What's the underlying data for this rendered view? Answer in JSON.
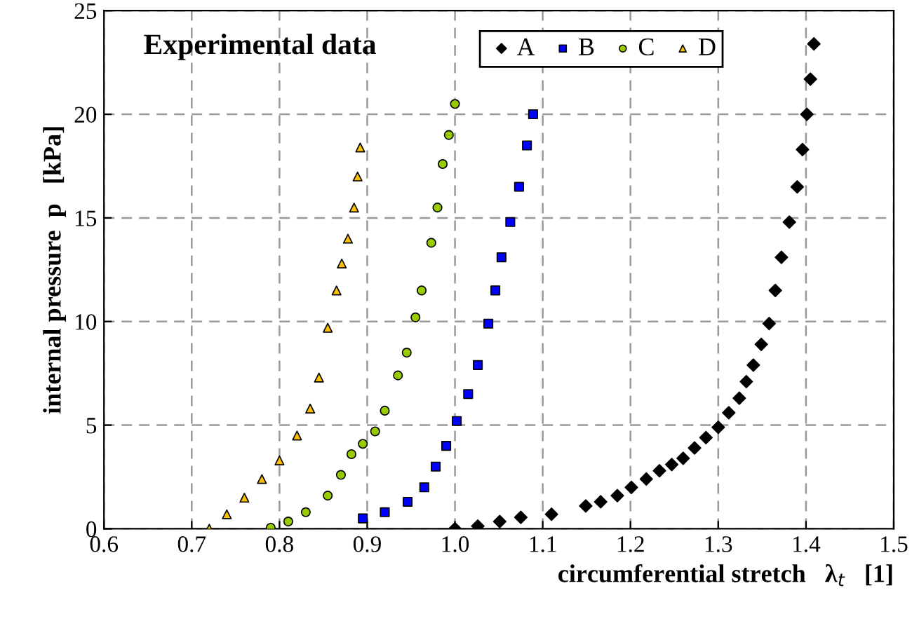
{
  "chart_data": {
    "type": "scatter",
    "xlabel": "circumferential stretch   λ$_{t}$   [1]",
    "ylabel": "internal pressure  p   [kPa]",
    "annotations": [
      "Experimental data"
    ],
    "xlim": [
      0.6,
      1.5
    ],
    "xticks": [
      0.6,
      0.7,
      0.8,
      0.9,
      {
        "value": 1.0,
        "label": "1.0"
      },
      1.1,
      1.2,
      1.3,
      1.4,
      1.5
    ],
    "ylim": [
      0,
      25
    ],
    "yticks": [
      0,
      5,
      10,
      15,
      20,
      25
    ],
    "grid": true,
    "legend": "top right",
    "series": [
      {
        "name": "A",
        "color": "#000000",
        "marker": "diamond",
        "x": [
          1.0,
          1.026,
          1.051,
          1.075,
          1.11,
          1.149,
          1.166,
          1.185,
          1.201,
          1.218,
          1.233,
          1.247,
          1.26,
          1.273,
          1.286,
          1.3,
          1.312,
          1.324,
          1.332,
          1.34,
          1.349,
          1.358,
          1.365,
          1.372,
          1.381,
          1.39,
          1.396,
          1.401,
          1.405,
          1.409
        ],
        "values": [
          0,
          0.13,
          0.35,
          0.55,
          0.7,
          1.1,
          1.3,
          1.6,
          2.0,
          2.4,
          2.8,
          3.1,
          3.4,
          3.9,
          4.4,
          4.9,
          5.6,
          6.3,
          7.1,
          7.9,
          8.9,
          9.9,
          11.5,
          13.1,
          14.8,
          16.5,
          18.3,
          20,
          21.7,
          23.4
        ]
      },
      {
        "name": "B",
        "color": "#0000ff",
        "marker": "square",
        "x": [
          0.895,
          0.92,
          0.946,
          0.965,
          0.978,
          0.99,
          1.002,
          1.015,
          1.026,
          1.038,
          1.046,
          1.053,
          1.063,
          1.073,
          1.082,
          1.089
        ],
        "values": [
          0.5,
          0.8,
          1.3,
          2.0,
          3.0,
          4.0,
          5.2,
          6.5,
          7.9,
          9.9,
          11.5,
          13.1,
          14.8,
          16.5,
          18.5,
          20
        ]
      },
      {
        "name": "C",
        "color": "#99cc00",
        "marker": "circle",
        "x": [
          0.79,
          0.81,
          0.83,
          0.855,
          0.87,
          0.882,
          0.895,
          0.909,
          0.92,
          0.935,
          0.945,
          0.955,
          0.962,
          0.973,
          0.98,
          0.986,
          0.993,
          1.0
        ],
        "values": [
          0.05,
          0.35,
          0.8,
          1.6,
          2.6,
          3.6,
          4.1,
          4.7,
          5.7,
          7.4,
          8.5,
          10.2,
          11.5,
          13.8,
          15.5,
          17.6,
          19,
          20.5
        ]
      },
      {
        "name": "D",
        "color": "#ffc000",
        "marker": "triangle",
        "x": [
          0.72,
          0.74,
          0.76,
          0.78,
          0.8,
          0.82,
          0.835,
          0.845,
          0.855,
          0.865,
          0.871,
          0.878,
          0.885,
          0.889,
          0.892
        ],
        "values": [
          0,
          0.7,
          1.5,
          2.4,
          3.3,
          4.5,
          5.8,
          7.3,
          9.7,
          11.5,
          12.8,
          14,
          15.5,
          17,
          18.4
        ]
      }
    ]
  }
}
